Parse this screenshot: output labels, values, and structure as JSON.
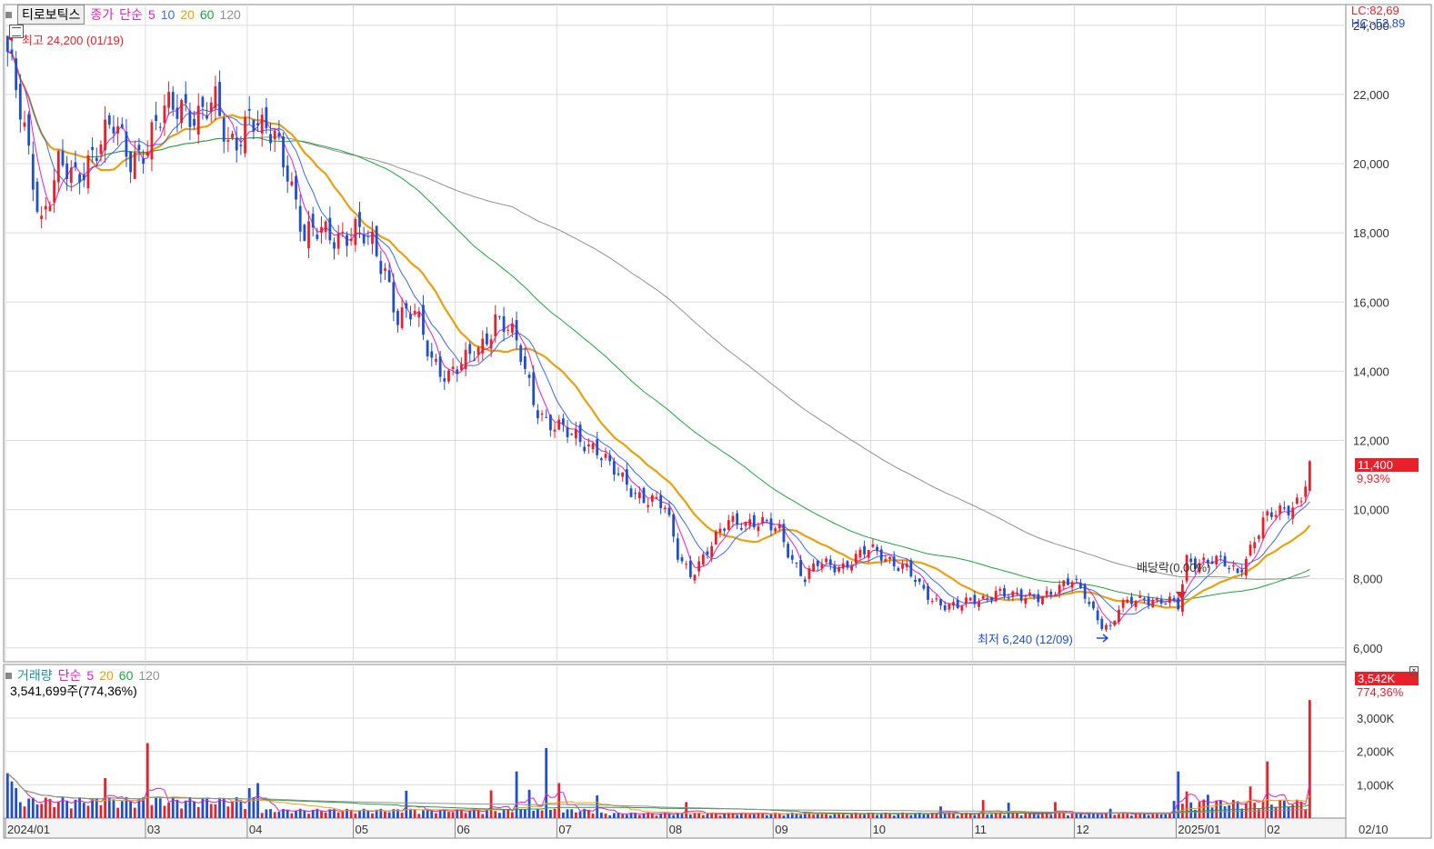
{
  "header": {
    "stock_name": "티로보틱스",
    "price_legend": {
      "label": "종가",
      "method": "단순",
      "periods": [
        "5",
        "10",
        "20",
        "60",
        "120"
      ]
    },
    "volume_legend": {
      "label": "거래량",
      "method": "단순",
      "periods": [
        "5",
        "20",
        "60",
        "120"
      ]
    },
    "volume_info": "3,541,699주(774,36%)"
  },
  "right_info": {
    "lc": "LC:82,69",
    "hc": "HC:-52,89"
  },
  "current_price": {
    "value": "11,400",
    "change": "9,93%"
  },
  "current_volume": {
    "value": "3,542K",
    "change": "774,36%"
  },
  "annotations": {
    "high": "최고 24,200 (01/19)",
    "low": "최저 6,240 (12/09)",
    "dividend": "배당락(0,00%)"
  },
  "colors": {
    "up": "#e8202a",
    "down": "#1f4fd0",
    "ma5": "#e020c0",
    "ma10": "#3a6ae8",
    "ma20": "#e8a010",
    "ma60": "#20a040",
    "ma120": "#909090",
    "grid": "#dcdcdc",
    "axis_bg": "#f4f4f4"
  },
  "chart_data": [
    {
      "type": "candlestick",
      "title": "티로보틱스",
      "ylim": [
        5600,
        24600
      ],
      "y_ticks": [
        "6,000",
        "8,000",
        "10,000",
        "12,000",
        "14,000",
        "16,000",
        "18,000",
        "20,000",
        "22,000",
        "24,000"
      ],
      "y_tick_values": [
        6000,
        8000,
        10000,
        12000,
        14000,
        16000,
        18000,
        20000,
        22000,
        24000
      ],
      "x_ticks": [
        "2024/01",
        "03",
        "04",
        "05",
        "06",
        "07",
        "08",
        "09",
        "10",
        "11",
        "12",
        "2025/01",
        "02",
        "02/10"
      ],
      "x_tick_index": [
        0,
        33,
        57,
        82,
        106,
        130,
        156,
        181,
        204,
        228,
        252,
        276,
        297,
        313
      ],
      "close_anchors": [
        [
          0,
          23000
        ],
        [
          4,
          21000
        ],
        [
          8,
          18400
        ],
        [
          12,
          19800
        ],
        [
          16,
          19600
        ],
        [
          20,
          20400
        ],
        [
          25,
          21000
        ],
        [
          29,
          20200
        ],
        [
          33,
          20600
        ],
        [
          37,
          21400
        ],
        [
          41,
          21800
        ],
        [
          45,
          21400
        ],
        [
          49,
          21600
        ],
        [
          52,
          20600
        ],
        [
          55,
          21000
        ],
        [
          57,
          21400
        ],
        [
          60,
          20800
        ],
        [
          63,
          20800
        ],
        [
          66,
          20000
        ],
        [
          70,
          17800
        ],
        [
          74,
          18000
        ],
        [
          78,
          18000
        ],
        [
          82,
          18000
        ],
        [
          86,
          17600
        ],
        [
          89,
          17000
        ],
        [
          92,
          15600
        ],
        [
          96,
          15600
        ],
        [
          100,
          14400
        ],
        [
          104,
          13900
        ],
        [
          108,
          14200
        ],
        [
          112,
          14800
        ],
        [
          115,
          15600
        ],
        [
          118,
          15200
        ],
        [
          121,
          14400
        ],
        [
          124,
          13200
        ],
        [
          127,
          12600
        ],
        [
          130,
          12300
        ],
        [
          133,
          12100
        ],
        [
          136,
          12000
        ],
        [
          139,
          11800
        ],
        [
          142,
          11200
        ],
        [
          145,
          10800
        ],
        [
          148,
          10500
        ],
        [
          152,
          10300
        ],
        [
          155,
          10000
        ],
        [
          158,
          8700
        ],
        [
          161,
          8200
        ],
        [
          164,
          8600
        ],
        [
          167,
          9100
        ],
        [
          170,
          9700
        ],
        [
          173,
          9700
        ],
        [
          176,
          9600
        ],
        [
          179,
          9500
        ],
        [
          182,
          9400
        ],
        [
          185,
          8600
        ],
        [
          188,
          8000
        ],
        [
          191,
          8400
        ],
        [
          194,
          8400
        ],
        [
          197,
          8400
        ],
        [
          200,
          8600
        ],
        [
          203,
          8800
        ],
        [
          206,
          8700
        ],
        [
          209,
          8500
        ],
        [
          212,
          8300
        ],
        [
          215,
          7700
        ],
        [
          218,
          7400
        ],
        [
          221,
          7300
        ],
        [
          224,
          7200
        ],
        [
          227,
          7300
        ],
        [
          230,
          7400
        ],
        [
          233,
          7700
        ],
        [
          236,
          7500
        ],
        [
          239,
          7400
        ],
        [
          242,
          7500
        ],
        [
          245,
          7600
        ],
        [
          248,
          7700
        ],
        [
          251,
          7900
        ],
        [
          254,
          7600
        ],
        [
          256,
          7100
        ],
        [
          258,
          6700
        ],
        [
          260,
          6500
        ],
        [
          262,
          7100
        ],
        [
          265,
          7400
        ],
        [
          268,
          7500
        ],
        [
          271,
          7300
        ],
        [
          274,
          7300
        ],
        [
          276,
          7200
        ],
        [
          278,
          8600
        ],
        [
          281,
          8500
        ],
        [
          284,
          8500
        ],
        [
          287,
          8400
        ],
        [
          290,
          8200
        ],
        [
          293,
          8900
        ],
        [
          296,
          9600
        ],
        [
          298,
          9800
        ],
        [
          301,
          10000
        ],
        [
          303,
          10200
        ],
        [
          305,
          10350
        ],
        [
          307,
          11400
        ]
      ],
      "ma_periods": [
        5,
        10,
        20,
        60,
        120
      ],
      "ma_names": [
        "MA5",
        "MA10",
        "MA20",
        "MA60",
        "MA120"
      ],
      "last_close": 11400,
      "all_time_high": {
        "value": 24200,
        "date": "01/19"
      },
      "period_low": {
        "value": 6240,
        "date": "12/09"
      }
    },
    {
      "type": "bar",
      "title": "거래량",
      "ylim": [
        0,
        4200
      ],
      "unit": "K",
      "y_ticks": [
        "1,000K",
        "2,000K",
        "3,000K"
      ],
      "y_tick_values": [
        1000,
        2000,
        3000
      ],
      "volume_spikes": [
        [
          0,
          1350
        ],
        [
          1,
          1100
        ],
        [
          2,
          900
        ],
        [
          33,
          2250
        ],
        [
          23,
          1200
        ],
        [
          57,
          900
        ],
        [
          59,
          1050
        ],
        [
          94,
          820
        ],
        [
          114,
          830
        ],
        [
          120,
          1400
        ],
        [
          123,
          850
        ],
        [
          127,
          2100
        ],
        [
          130,
          1050
        ],
        [
          139,
          680
        ],
        [
          160,
          480
        ],
        [
          220,
          350
        ],
        [
          230,
          540
        ],
        [
          236,
          460
        ],
        [
          247,
          480
        ],
        [
          260,
          280
        ],
        [
          276,
          1400
        ],
        [
          278,
          800
        ],
        [
          283,
          700
        ],
        [
          293,
          950
        ],
        [
          297,
          1700
        ],
        [
          301,
          520
        ],
        [
          307,
          3542
        ]
      ],
      "last_volume": 3542
    }
  ]
}
